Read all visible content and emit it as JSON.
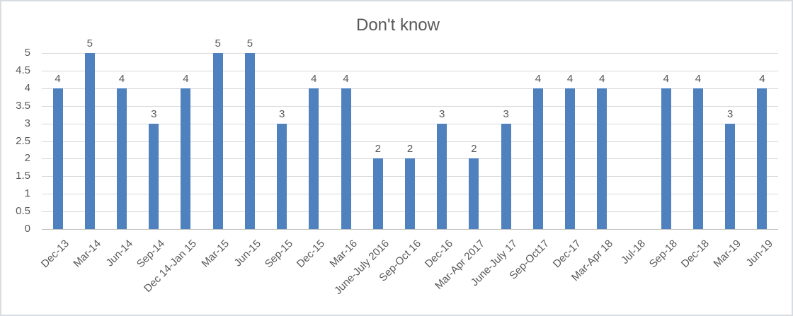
{
  "colors": {
    "bar": "#4e81bd",
    "text": "#595959",
    "gridline": "#d9d9d9",
    "axis_line": "#bfbfbf",
    "border": "#d8dde3"
  },
  "chart_data": {
    "type": "bar",
    "title": "Don't know",
    "categories": [
      "Dec-13",
      "Mar-14",
      "Jun-14",
      "Sep-14",
      "Dec 14-Jan 15",
      "Mar-15",
      "Jun-15",
      "Sep-15",
      "Dec-15",
      "Mar-16",
      "June-July 2016",
      "Sep-Oct 16",
      "Dec-16",
      "Mar-Apr 2017",
      "June-July 17",
      "Sep-Oct17",
      "Dec-17",
      "Mar-Apr 18",
      "Jul-18",
      "Sep-18",
      "Dec-18",
      "Mar-19",
      "Jun-19"
    ],
    "values": [
      4,
      5,
      4,
      3,
      4,
      5,
      5,
      3,
      4,
      4,
      2,
      2,
      3,
      2,
      3,
      4,
      4,
      4,
      null,
      4,
      4,
      3,
      4
    ],
    "xlabel": "",
    "ylabel": "",
    "ylim": [
      0,
      5
    ],
    "ytick_step": 0.5,
    "ytick_labels": [
      "0",
      "0.5",
      "1",
      "1.5",
      "2",
      "2.5",
      "3",
      "3.5",
      "4",
      "4.5",
      "5"
    ],
    "grid": true,
    "legend": "none",
    "data_labels": true,
    "bar_orientation": "vertical"
  }
}
